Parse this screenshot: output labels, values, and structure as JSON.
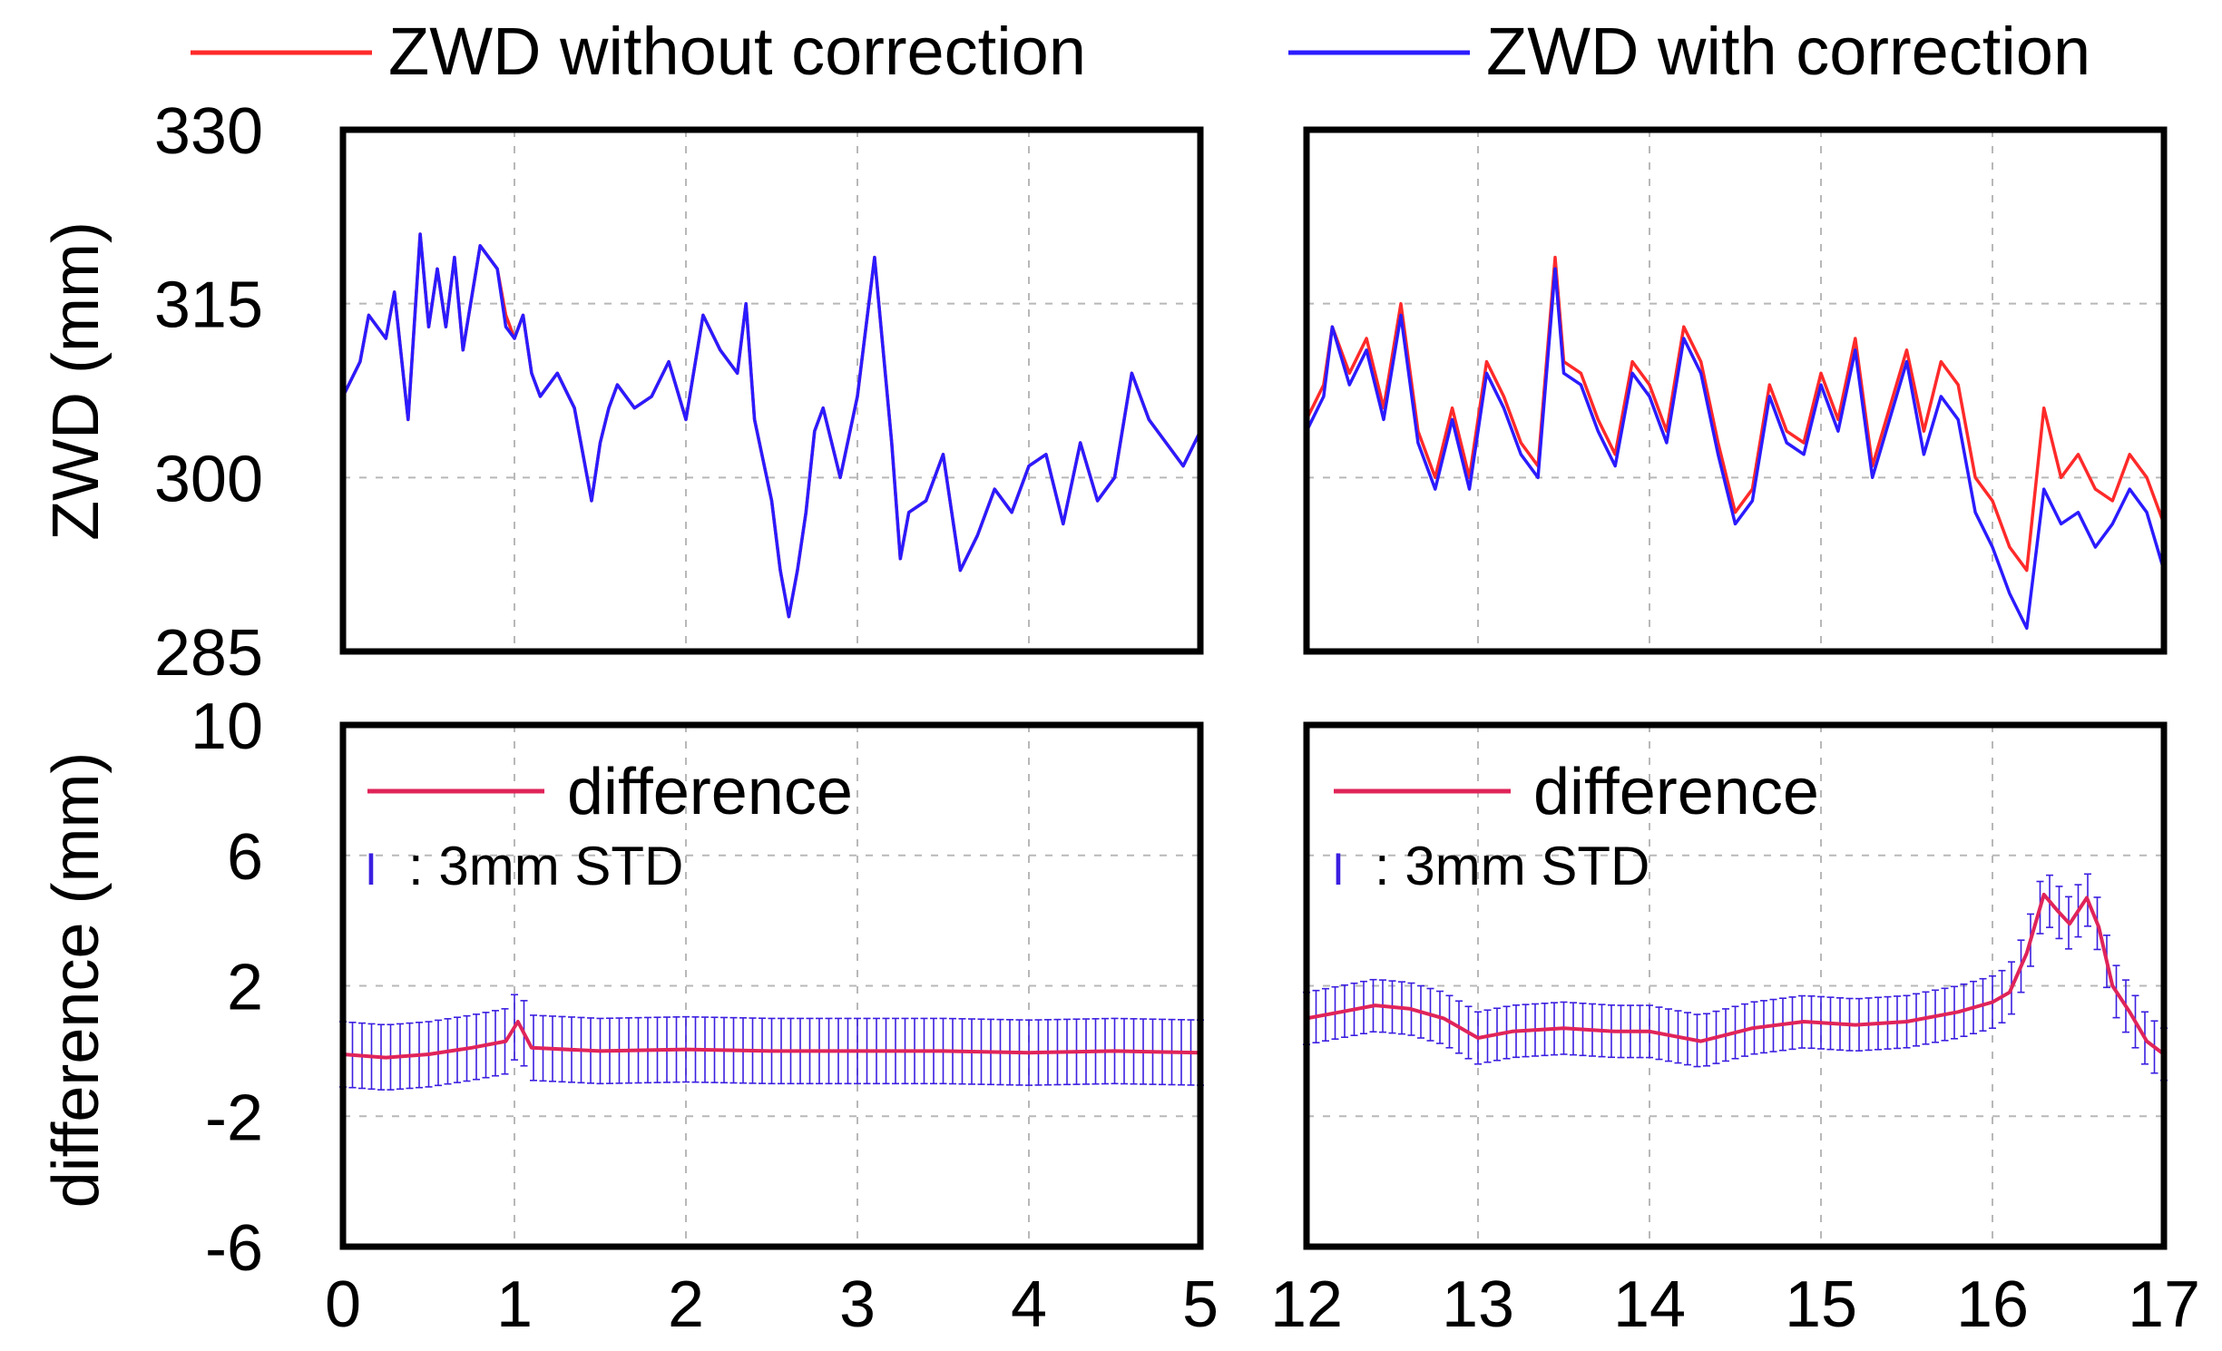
{
  "legend": {
    "items": [
      {
        "label": "ZWD without correction",
        "color": "#ff2a2a"
      },
      {
        "label": "ZWD with correction",
        "color": "#2b1bff"
      }
    ]
  },
  "axes": {
    "ylabel_top": "ZWD (mm)",
    "ylabel_bottom": "difference (mm)"
  },
  "panel_legend": {
    "difference_label": "difference",
    "std_symbol": "I",
    "std_label": ": 3mm STD"
  },
  "colors": {
    "without": "#ff2a2a",
    "with": "#2b1bff",
    "difference": "#e0245a",
    "errorbar": "#3a1fe0",
    "grid": "#b8b8b8"
  },
  "chart_data": [
    {
      "type": "line",
      "id": "zwd-left",
      "title": "",
      "xlabel": "",
      "ylabel": "ZWD (mm)",
      "xlim": [
        0,
        5
      ],
      "ylim": [
        285,
        330
      ],
      "xticks": [
        0,
        1,
        2,
        3,
        4,
        5
      ],
      "yticks": [
        285,
        300,
        315,
        330
      ],
      "grid": true,
      "series": [
        {
          "name": "ZWD without correction",
          "color": "#ff2a2a",
          "x": [
            0,
            0.1,
            0.15,
            0.25,
            0.3,
            0.38,
            0.45,
            0.5,
            0.55,
            0.6,
            0.65,
            0.7,
            0.8,
            0.9,
            0.95,
            1.0,
            1.05,
            1.1,
            1.15,
            1.25,
            1.35,
            1.45,
            1.5,
            1.55,
            1.6,
            1.7,
            1.8,
            1.9,
            2.0,
            2.1,
            2.2,
            2.3,
            2.35,
            2.4,
            2.5,
            2.55,
            2.6,
            2.65,
            2.7,
            2.75,
            2.8,
            2.9,
            3.0,
            3.1,
            3.2,
            3.25,
            3.3,
            3.4,
            3.5,
            3.6,
            3.7,
            3.8,
            3.9,
            4.0,
            4.1,
            4.2,
            4.3,
            4.4,
            4.5,
            4.6,
            4.7,
            4.8,
            4.9,
            5.0
          ],
          "y": [
            307,
            310,
            314,
            312,
            316,
            305,
            321,
            313,
            318,
            313,
            319,
            311,
            320,
            318,
            314,
            312,
            314,
            309,
            307,
            309,
            306,
            298,
            303,
            306,
            308,
            306,
            307,
            310,
            305,
            314,
            311,
            309,
            315,
            305,
            298,
            292,
            288,
            292,
            297,
            304,
            306,
            300,
            307,
            319,
            303,
            293,
            297,
            298,
            302,
            292,
            295,
            299,
            297,
            301,
            302,
            296,
            303,
            298,
            300,
            309,
            305,
            303,
            301,
            304
          ]
        },
        {
          "name": "ZWD with correction",
          "color": "#2b1bff",
          "x": [
            0,
            0.1,
            0.15,
            0.25,
            0.3,
            0.38,
            0.45,
            0.5,
            0.55,
            0.6,
            0.65,
            0.7,
            0.8,
            0.9,
            0.95,
            1.0,
            1.05,
            1.1,
            1.15,
            1.25,
            1.35,
            1.45,
            1.5,
            1.55,
            1.6,
            1.7,
            1.8,
            1.9,
            2.0,
            2.1,
            2.2,
            2.3,
            2.35,
            2.4,
            2.5,
            2.55,
            2.6,
            2.65,
            2.7,
            2.75,
            2.8,
            2.9,
            3.0,
            3.1,
            3.2,
            3.25,
            3.3,
            3.4,
            3.5,
            3.6,
            3.7,
            3.8,
            3.9,
            4.0,
            4.1,
            4.2,
            4.3,
            4.4,
            4.5,
            4.6,
            4.7,
            4.8,
            4.9,
            5.0
          ],
          "y": [
            307,
            310,
            314,
            312,
            316,
            305,
            321,
            313,
            318,
            313,
            319,
            311,
            320,
            318,
            313,
            312,
            314,
            309,
            307,
            309,
            306,
            298,
            303,
            306,
            308,
            306,
            307,
            310,
            305,
            314,
            311,
            309,
            315,
            305,
            298,
            292,
            288,
            292,
            297,
            304,
            306,
            300,
            307,
            319,
            303,
            293,
            297,
            298,
            302,
            292,
            295,
            299,
            297,
            301,
            302,
            296,
            303,
            298,
            300,
            309,
            305,
            303,
            301,
            304
          ]
        }
      ]
    },
    {
      "type": "line",
      "id": "zwd-right",
      "title": "",
      "xlabel": "",
      "ylabel": "",
      "xlim": [
        12,
        17
      ],
      "ylim": [
        285,
        330
      ],
      "xticks": [
        12,
        13,
        14,
        15,
        16,
        17
      ],
      "yticks": [
        285,
        300,
        315,
        330
      ],
      "grid": true,
      "series": [
        {
          "name": "ZWD without correction",
          "color": "#ff2a2a",
          "x": [
            12,
            12.1,
            12.15,
            12.25,
            12.35,
            12.45,
            12.55,
            12.65,
            12.75,
            12.85,
            12.95,
            13.05,
            13.15,
            13.25,
            13.35,
            13.45,
            13.5,
            13.6,
            13.7,
            13.8,
            13.9,
            14.0,
            14.1,
            14.2,
            14.3,
            14.4,
            14.5,
            14.6,
            14.7,
            14.8,
            14.9,
            15.0,
            15.1,
            15.2,
            15.3,
            15.4,
            15.5,
            15.6,
            15.7,
            15.8,
            15.9,
            16.0,
            16.1,
            16.2,
            16.3,
            16.4,
            16.5,
            16.6,
            16.7,
            16.8,
            16.9,
            17.0
          ],
          "y": [
            305,
            308,
            313,
            309,
            312,
            306,
            315,
            304,
            300,
            306,
            300,
            310,
            307,
            303,
            301,
            319,
            310,
            309,
            305,
            302,
            310,
            308,
            304,
            313,
            310,
            303,
            297,
            299,
            308,
            304,
            303,
            309,
            305,
            312,
            301,
            306,
            311,
            304,
            310,
            308,
            300,
            298,
            294,
            292,
            306,
            300,
            302,
            299,
            298,
            302,
            300,
            296
          ]
        },
        {
          "name": "ZWD with correction",
          "color": "#2b1bff",
          "x": [
            12,
            12.1,
            12.15,
            12.25,
            12.35,
            12.45,
            12.55,
            12.65,
            12.75,
            12.85,
            12.95,
            13.05,
            13.15,
            13.25,
            13.35,
            13.45,
            13.5,
            13.6,
            13.7,
            13.8,
            13.9,
            14.0,
            14.1,
            14.2,
            14.3,
            14.4,
            14.5,
            14.6,
            14.7,
            14.8,
            14.9,
            15.0,
            15.1,
            15.2,
            15.3,
            15.4,
            15.5,
            15.6,
            15.7,
            15.8,
            15.9,
            16.0,
            16.1,
            16.2,
            16.3,
            16.4,
            16.5,
            16.6,
            16.7,
            16.8,
            16.9,
            17.0
          ],
          "y": [
            304,
            307,
            313,
            308,
            311,
            305,
            314,
            303,
            299,
            305,
            299,
            309,
            306,
            302,
            300,
            318,
            309,
            308,
            304,
            301,
            309,
            307,
            303,
            312,
            309,
            302,
            296,
            298,
            307,
            303,
            302,
            308,
            304,
            311,
            300,
            305,
            310,
            302,
            307,
            305,
            297,
            294,
            290,
            287,
            299,
            296,
            297,
            294,
            296,
            299,
            297,
            292
          ]
        }
      ]
    },
    {
      "type": "line",
      "id": "diff-left",
      "title": "",
      "xlabel": "",
      "ylabel": "difference (mm)",
      "xlim": [
        0,
        5
      ],
      "ylim": [
        -6,
        10
      ],
      "xticks": [
        0,
        1,
        2,
        3,
        4,
        5
      ],
      "yticks": [
        -6,
        -2,
        2,
        6,
        10
      ],
      "grid": true,
      "series": [
        {
          "name": "difference",
          "color": "#e0245a",
          "x": [
            0,
            0.25,
            0.5,
            0.75,
            0.95,
            1.02,
            1.1,
            1.5,
            2.0,
            2.5,
            3.0,
            3.5,
            4.0,
            4.5,
            5.0
          ],
          "y": [
            -0.1,
            -0.2,
            -0.1,
            0.1,
            0.3,
            0.9,
            0.1,
            0.0,
            0.05,
            0.0,
            0.0,
            0.0,
            -0.05,
            0.0,
            -0.05
          ],
          "errorbar": 1.0
        }
      ]
    },
    {
      "type": "line",
      "id": "diff-right",
      "title": "",
      "xlabel": "",
      "ylabel": "",
      "xlim": [
        12,
        17
      ],
      "ylim": [
        -6,
        10
      ],
      "xticks": [
        12,
        13,
        14,
        15,
        16,
        17
      ],
      "yticks": [
        -6,
        -2,
        2,
        6,
        10
      ],
      "grid": true,
      "series": [
        {
          "name": "difference",
          "color": "#e0245a",
          "x": [
            12,
            12.2,
            12.4,
            12.6,
            12.8,
            13.0,
            13.2,
            13.5,
            13.8,
            14.0,
            14.3,
            14.6,
            14.9,
            15.2,
            15.5,
            15.8,
            16.0,
            16.1,
            16.2,
            16.3,
            16.38,
            16.45,
            16.55,
            16.62,
            16.7,
            16.8,
            16.9,
            17.0
          ],
          "y": [
            1.0,
            1.2,
            1.4,
            1.3,
            1.0,
            0.4,
            0.6,
            0.7,
            0.6,
            0.6,
            0.3,
            0.7,
            0.9,
            0.8,
            0.9,
            1.2,
            1.5,
            1.8,
            3.0,
            4.8,
            4.3,
            3.9,
            4.7,
            3.8,
            2.0,
            1.2,
            0.3,
            -0.1
          ],
          "errorbar": 0.8
        }
      ]
    }
  ]
}
